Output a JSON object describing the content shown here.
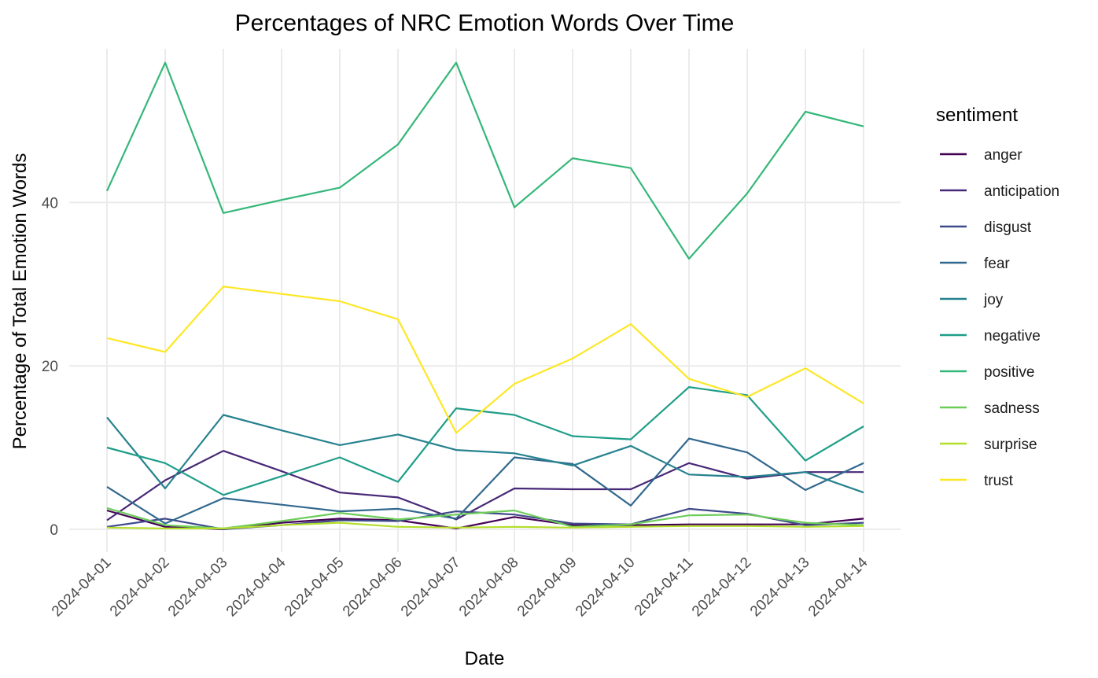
{
  "chart_data": {
    "type": "line",
    "title": "Percentages of NRC Emotion Words Over Time",
    "xlabel": "Date",
    "ylabel": "Percentage of Total Emotion Words",
    "x": [
      "2024-04-01",
      "2024-04-02",
      "2024-04-03",
      "2024-04-04",
      "2024-04-05",
      "2024-04-06",
      "2024-04-07",
      "2024-04-08",
      "2024-04-09",
      "2024-04-10",
      "2024-04-11",
      "2024-04-12",
      "2024-04-13",
      "2024-04-14"
    ],
    "yticks": [
      0,
      20,
      40
    ],
    "ylim": [
      -2.8,
      58.8
    ],
    "grid": true,
    "legend": {
      "title": "sentiment",
      "position": "right"
    },
    "series": [
      {
        "name": "anger",
        "color": "#440154",
        "values": [
          2.3,
          0.3,
          0.0,
          0.8,
          1.3,
          1.1,
          0.1,
          1.5,
          0.5,
          0.5,
          0.6,
          0.6,
          0.6,
          1.3
        ]
      },
      {
        "name": "anticipation",
        "color": "#482878",
        "values": [
          1.1,
          6.0,
          9.6,
          7.1,
          4.5,
          3.9,
          1.2,
          5.0,
          4.9,
          4.9,
          8.1,
          6.2,
          7.0,
          7.0
        ]
      },
      {
        "name": "disgust",
        "color": "#3E4A89",
        "values": [
          0.3,
          1.3,
          0.0,
          0.5,
          1.1,
          1.0,
          2.2,
          1.8,
          0.7,
          0.6,
          2.5,
          1.9,
          0.5,
          0.8
        ]
      },
      {
        "name": "fear",
        "color": "#31688E",
        "values": [
          5.2,
          0.7,
          3.8,
          3.0,
          2.2,
          2.5,
          1.3,
          8.8,
          8.0,
          2.9,
          11.1,
          9.4,
          4.8,
          8.1
        ]
      },
      {
        "name": "joy",
        "color": "#26828E",
        "values": [
          13.7,
          5.0,
          14.0,
          12.1,
          10.3,
          11.6,
          9.7,
          9.3,
          7.8,
          10.2,
          6.7,
          6.4,
          7.0,
          4.5
        ]
      },
      {
        "name": "negative",
        "color": "#1F9E89",
        "values": [
          10.0,
          8.1,
          4.2,
          6.5,
          8.8,
          5.8,
          14.8,
          14.0,
          11.4,
          11.0,
          17.4,
          16.4,
          8.4,
          12.6
        ]
      },
      {
        "name": "positive",
        "color": "#35B779",
        "values": [
          41.4,
          57.1,
          38.7,
          40.3,
          41.8,
          47.1,
          57.1,
          39.4,
          45.4,
          44.2,
          33.1,
          41.1,
          51.1,
          49.3
        ]
      },
      {
        "name": "sadness",
        "color": "#6DCD59",
        "values": [
          2.6,
          0.5,
          0.1,
          1.0,
          2.0,
          1.2,
          1.8,
          2.3,
          0.3,
          0.6,
          1.7,
          1.8,
          0.8,
          0.5
        ]
      },
      {
        "name": "surprise",
        "color": "#B4DE2C",
        "values": [
          0.2,
          0.1,
          0.1,
          0.5,
          0.8,
          0.3,
          0.2,
          0.3,
          0.2,
          0.3,
          0.4,
          0.4,
          0.3,
          0.4
        ]
      },
      {
        "name": "trust",
        "color": "#FDE725",
        "values": [
          23.4,
          21.7,
          29.7,
          28.8,
          27.9,
          25.7,
          11.8,
          17.8,
          20.9,
          25.1,
          18.4,
          16.2,
          19.7,
          15.4
        ]
      }
    ]
  }
}
